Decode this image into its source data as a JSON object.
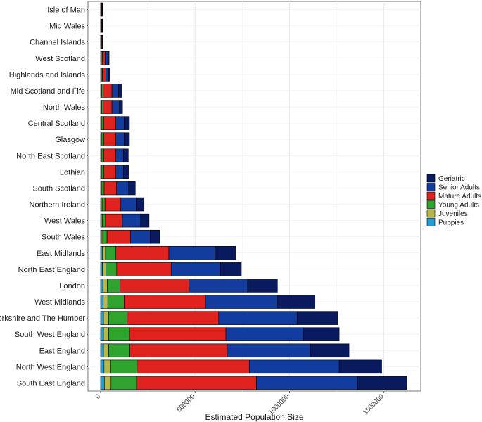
{
  "chart_data": {
    "type": "bar",
    "orientation": "horizontal",
    "stacked": true,
    "title": "",
    "xlabel": "Estimated Population Size",
    "ylabel": "",
    "xlim": [
      0,
      1650000
    ],
    "xticks": [
      0,
      500000,
      1000000,
      1500000
    ],
    "xtick_labels": [
      "0",
      "500000",
      "1000000",
      "1500000"
    ],
    "grid": true,
    "legend_position": "right",
    "categories": [
      "Isle of Man",
      "Mid Wales",
      "Channel Islands",
      "West Scotland",
      "Highlands and Islands",
      "Mid Scotland and Fife",
      "North Wales",
      "Central Scotland",
      "Glasgow",
      "North East Scotland",
      "Lothian",
      "South Scotland",
      "Northern Ireland",
      "West Wales",
      "South Wales",
      "East Midlands",
      "North East England",
      "London",
      "West Midlands",
      "Yorkshire and The Humber",
      "South West England",
      "East England",
      "North West England",
      "South East England"
    ],
    "series": [
      {
        "name": "Puppies",
        "color": "#1f9fd6",
        "values": [
          500,
          500,
          500,
          1500,
          1500,
          2000,
          2000,
          2500,
          2500,
          2500,
          2500,
          2500,
          3000,
          3500,
          4000,
          9000,
          10000,
          12000,
          14000,
          15000,
          15000,
          15000,
          18000,
          20000
        ]
      },
      {
        "name": "Juveniles",
        "color": "#b8b84a",
        "values": [
          500,
          500,
          500,
          1500,
          2000,
          3000,
          3000,
          4000,
          4000,
          4000,
          4000,
          4000,
          5000,
          5000,
          7000,
          17000,
          18000,
          23000,
          24000,
          27000,
          28000,
          28000,
          35000,
          35000
        ]
      },
      {
        "name": "Young Adults",
        "color": "#2ea32e",
        "values": [
          2000,
          2000,
          2500,
          6000,
          6000,
          8000,
          8000,
          11000,
          11000,
          11000,
          11000,
          12000,
          15000,
          17000,
          23000,
          55000,
          57000,
          68000,
          87000,
          98000,
          110000,
          112000,
          140000,
          135000
        ]
      },
      {
        "name": "Mature Adults",
        "color": "#e0221e",
        "values": [
          3000,
          3000,
          4000,
          15000,
          18000,
          47000,
          47000,
          63000,
          63000,
          63000,
          63000,
          66000,
          84000,
          90000,
          124000,
          280000,
          290000,
          365000,
          430000,
          485000,
          510000,
          515000,
          595000,
          635000
        ]
      },
      {
        "name": "Senior Adults",
        "color": "#123d9e",
        "values": [
          2500,
          2500,
          3000,
          14000,
          15000,
          35000,
          38000,
          44000,
          44000,
          40000,
          40000,
          64000,
          81000,
          96000,
          104000,
          245000,
          260000,
          310000,
          380000,
          415000,
          410000,
          440000,
          475000,
          535000
        ]
      },
      {
        "name": "Geriatric",
        "color": "#0a1a5e",
        "values": [
          2000,
          2000,
          3000,
          7000,
          8000,
          18000,
          18000,
          28000,
          28000,
          26000,
          27000,
          35000,
          42000,
          45000,
          51000,
          110000,
          110000,
          158000,
          200000,
          215000,
          190000,
          205000,
          225000,
          260000
        ]
      }
    ]
  }
}
